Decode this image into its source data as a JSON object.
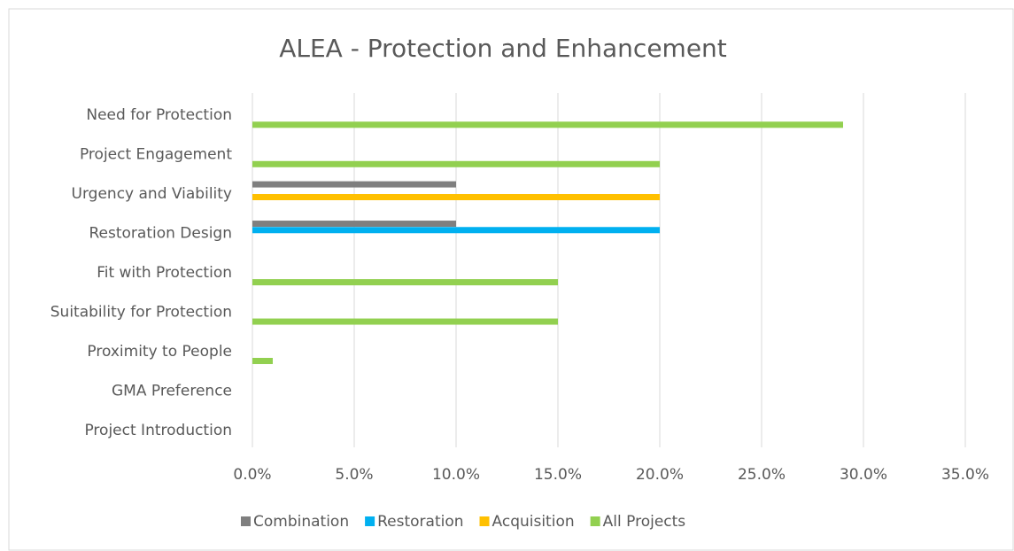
{
  "chart_data": {
    "type": "hbar",
    "title": "ALEA - Protection and Enhancement",
    "categories": [
      "Need for Protection",
      "Project Engagement",
      "Urgency and Viability",
      "Restoration Design",
      "Fit with Protection",
      "Suitability for Protection",
      "Proximity to People",
      "GMA Preference",
      "Project Introduction"
    ],
    "series": [
      {
        "name": "Combination",
        "color": "#7f7f7f",
        "values": [
          null,
          null,
          10,
          10,
          null,
          null,
          null,
          null,
          null
        ]
      },
      {
        "name": "Restoration",
        "color": "#00b0f0",
        "values": [
          null,
          null,
          null,
          20,
          null,
          null,
          null,
          null,
          null
        ]
      },
      {
        "name": "Acquisition",
        "color": "#ffc000",
        "values": [
          null,
          null,
          20,
          null,
          null,
          null,
          null,
          null,
          null
        ]
      },
      {
        "name": "All Projects",
        "color": "#92d050",
        "values": [
          29,
          20,
          null,
          null,
          15,
          15,
          1,
          null,
          null
        ]
      }
    ],
    "xlim": [
      0,
      35
    ],
    "xticks": [
      {
        "value": 0,
        "label": "0.0%"
      },
      {
        "value": 5,
        "label": "5.0%"
      },
      {
        "value": 10,
        "label": "10.0%"
      },
      {
        "value": 15,
        "label": "15.0%"
      },
      {
        "value": 20,
        "label": "20.0%"
      },
      {
        "value": 25,
        "label": "25.0%"
      },
      {
        "value": 30,
        "label": "30.0%"
      },
      {
        "value": 35,
        "label": "35.0%"
      }
    ],
    "grid": true,
    "legend": "bottom"
  }
}
